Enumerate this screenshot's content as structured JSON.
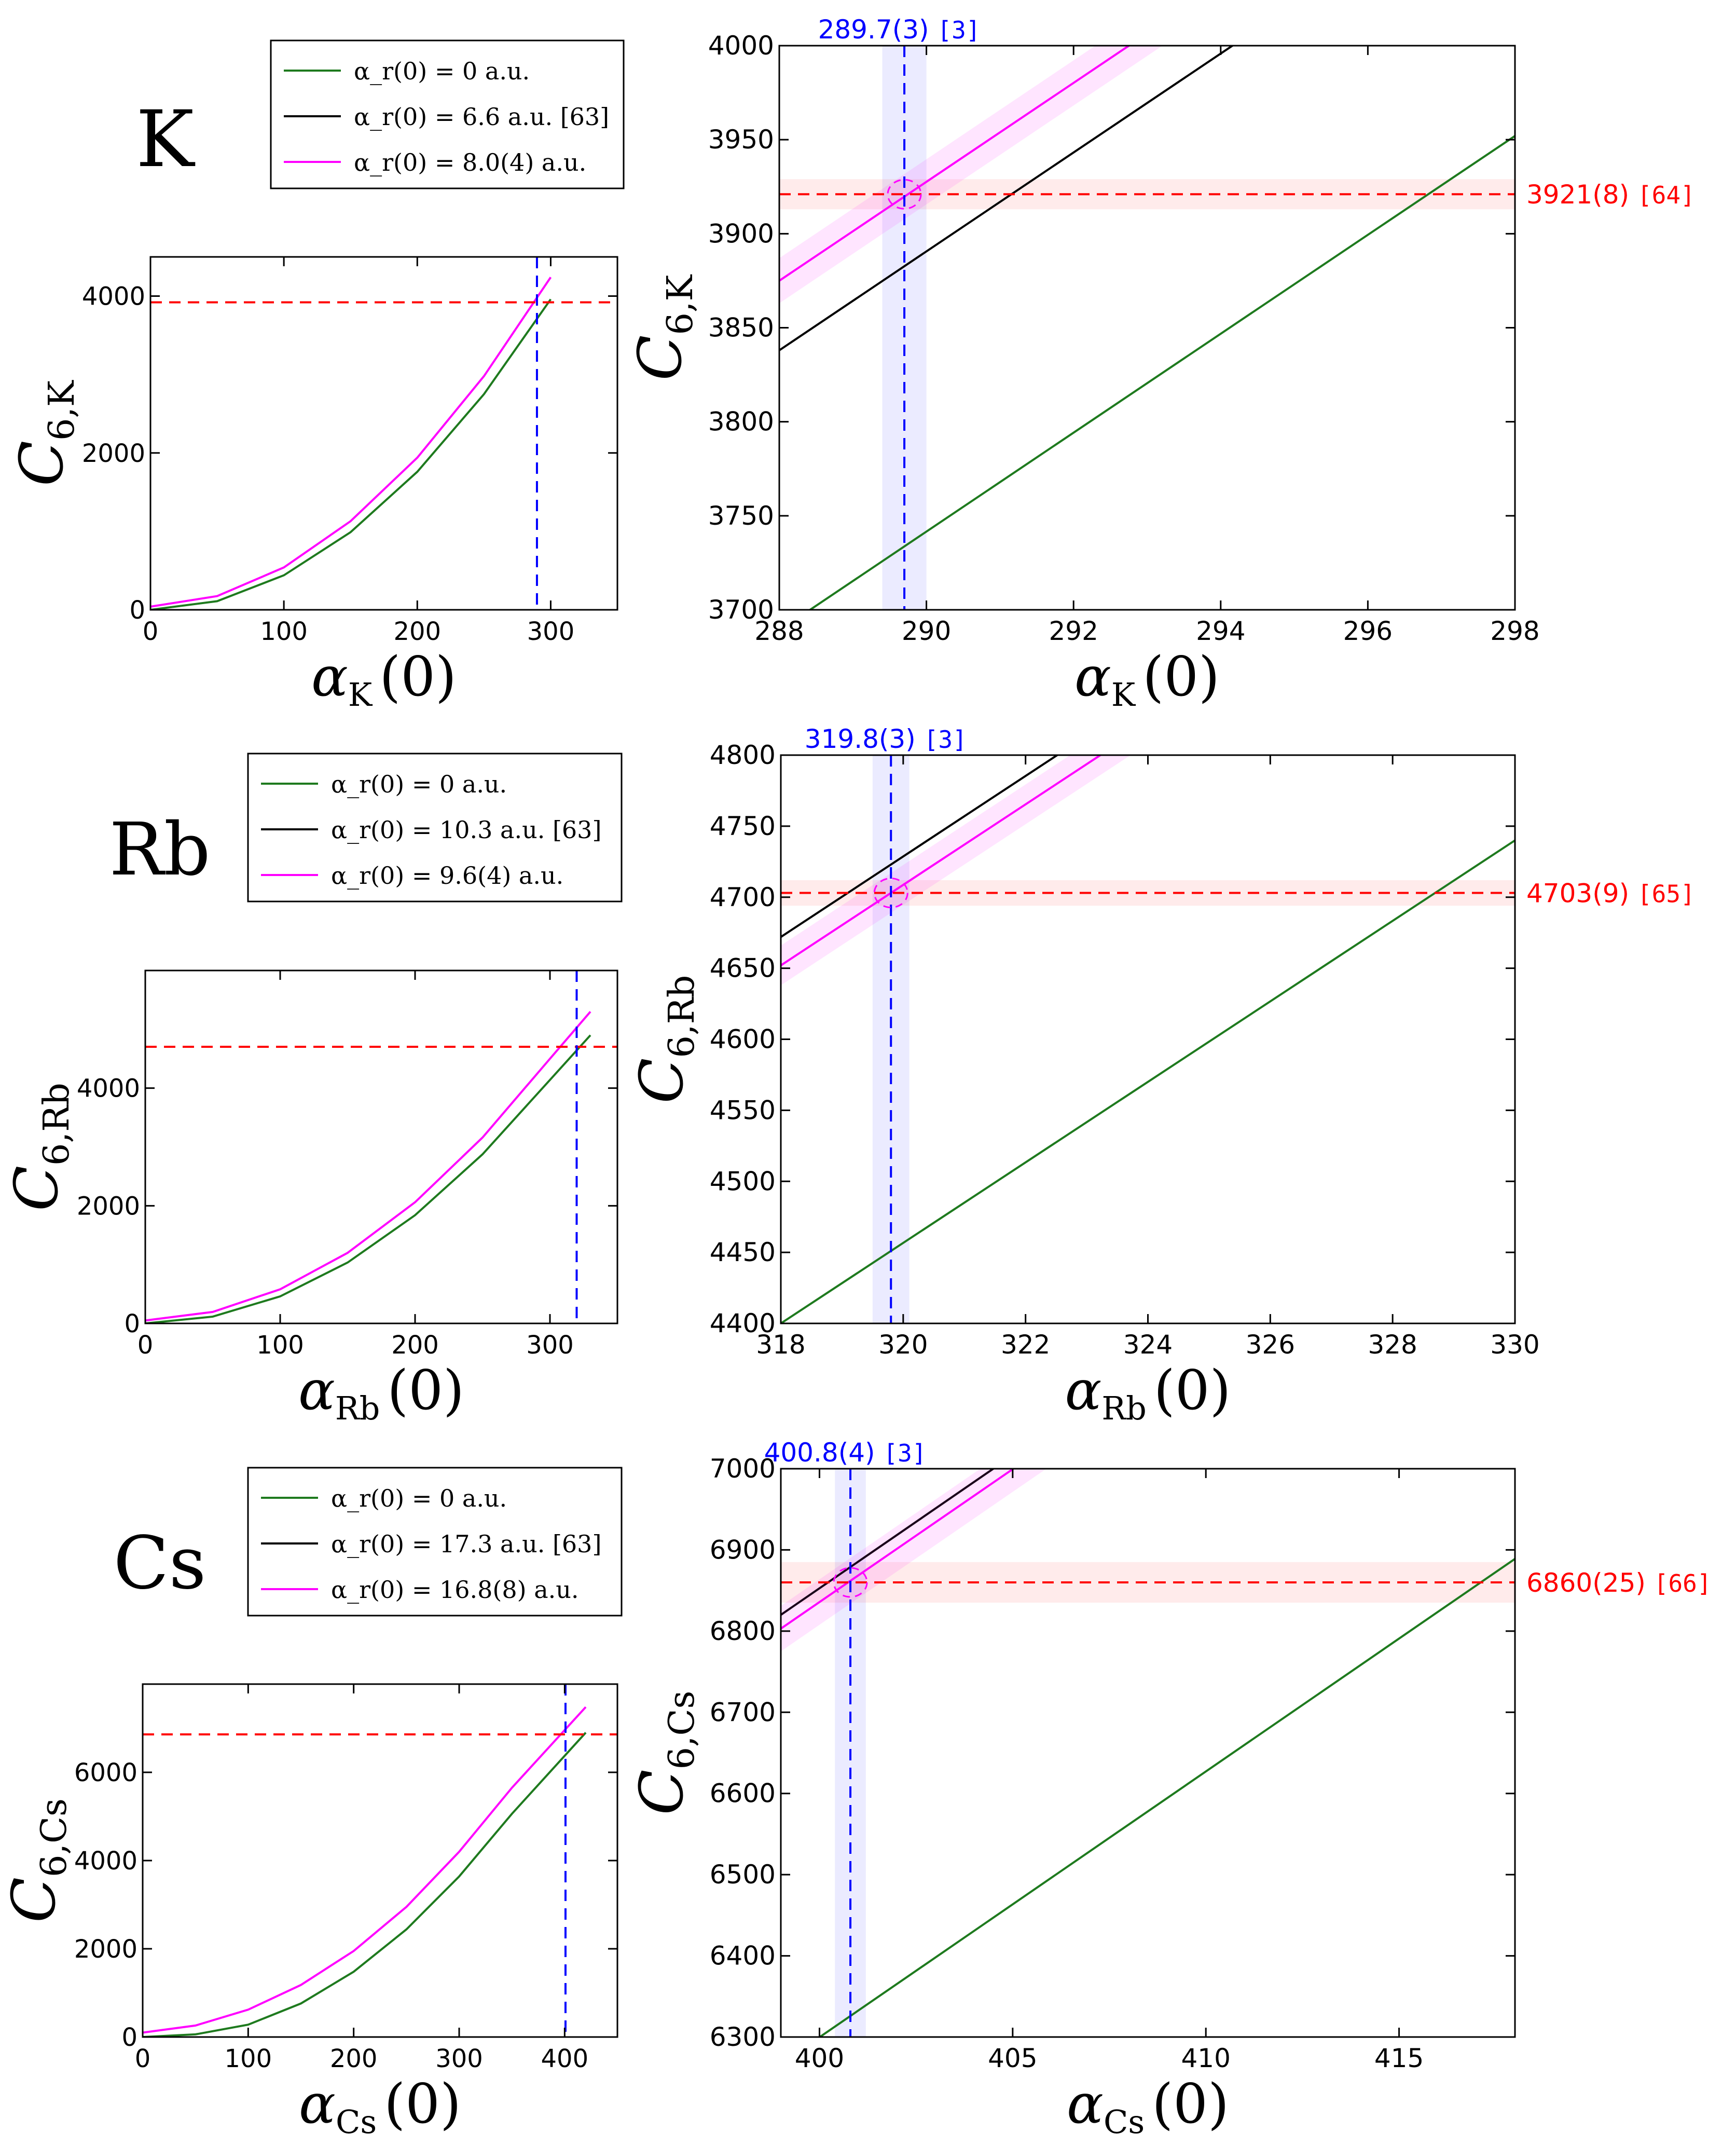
{
  "figure": {
    "description_rows": [
      "K",
      "Rb",
      "Cs"
    ]
  },
  "chart_data": [
    {
      "element": "K",
      "panel": "overview",
      "type": "line",
      "xlabel_sym": "α",
      "xlabel_sub": "K",
      "xlabel_arg": "(0)",
      "ylabel_sym": "C",
      "ylabel_sub": "6,K",
      "xlim": [
        0,
        350
      ],
      "ylim": [
        0,
        4500
      ],
      "xticks": [
        0,
        100,
        200,
        300
      ],
      "yticks": [
        0,
        2000,
        4000
      ],
      "series": [
        {
          "name": "alpha_r(0) = 0 a.u.",
          "color": "#1e7a1e",
          "x": [
            0,
            50,
            100,
            150,
            200,
            250,
            300
          ],
          "y": [
            0,
            110,
            440,
            990,
            1760,
            2750,
            3960
          ]
        },
        {
          "name": "alpha_r(0) = 8.0(4) a.u.",
          "color": "#ff00ff",
          "x": [
            0,
            50,
            100,
            150,
            200,
            250,
            300
          ],
          "y": [
            40,
            175,
            540,
            1130,
            1940,
            2980,
            4240
          ]
        }
      ],
      "hline": {
        "y": 3921,
        "color": "#ff0000"
      },
      "vline": {
        "x": 289.7,
        "color": "#0000ff"
      },
      "legend": {
        "entries": [
          {
            "text": "α_r(0) = 0 a.u.",
            "color": "#1e7a1e"
          },
          {
            "text": "α_r(0) = 6.6 a.u. [63]",
            "color": "#000000"
          },
          {
            "text": "α_r(0) = 8.0(4) a.u.",
            "color": "#ff00ff"
          }
        ]
      }
    },
    {
      "element": "K",
      "panel": "zoom",
      "type": "line",
      "xlabel_sym": "α",
      "xlabel_sub": "K",
      "xlabel_arg": "(0)",
      "ylabel_sym": "C",
      "ylabel_sub": "6,K",
      "xlim": [
        288,
        298
      ],
      "ylim": [
        3700,
        4000
      ],
      "xticks": [
        288,
        290,
        292,
        294,
        296,
        298
      ],
      "yticks": [
        3700,
        3750,
        3800,
        3850,
        3900,
        3950,
        4000
      ],
      "series": [
        {
          "name": "alpha_r(0) = 0 a.u.",
          "color": "#1e7a1e",
          "x": [
            288,
            298
          ],
          "y": [
            3689,
            3952
          ]
        },
        {
          "name": "alpha_r(0) = 6.6 a.u. [63]",
          "color": "#000000",
          "x": [
            288,
            298
          ],
          "y": [
            3838,
            4101
          ]
        },
        {
          "name": "alpha_r(0) = 8.0(4) a.u.",
          "color": "#ff00ff",
          "x": [
            288,
            298
          ],
          "y": [
            3875,
            4138
          ],
          "band": 12
        }
      ],
      "hline": {
        "y": 3921,
        "err": 8,
        "color": "#ff0000",
        "label_value": "3921(8)",
        "label_ref": "[64]"
      },
      "vline": {
        "x": 289.7,
        "err": 0.3,
        "color": "#0000ff",
        "label_value": "289.7(3)",
        "label_ref": "[3]"
      }
    },
    {
      "element": "Rb",
      "panel": "overview",
      "type": "line",
      "xlabel_sym": "α",
      "xlabel_sub": "Rb",
      "xlabel_arg": "(0)",
      "ylabel_sym": "C",
      "ylabel_sub": "6,Rb",
      "xlim": [
        0,
        350
      ],
      "ylim": [
        0,
        6000
      ],
      "xticks": [
        0,
        100,
        200,
        300
      ],
      "yticks": [
        0,
        2000,
        4000
      ],
      "series": [
        {
          "name": "alpha_r(0) = 0 a.u.",
          "color": "#1e7a1e",
          "x": [
            0,
            50,
            100,
            150,
            200,
            250,
            300,
            330
          ],
          "y": [
            0,
            115,
            460,
            1035,
            1840,
            2875,
            4140,
            4900
          ]
        },
        {
          "name": "alpha_r(0) = 9.6(4) a.u.",
          "color": "#ff00ff",
          "x": [
            0,
            50,
            100,
            150,
            200,
            250,
            300,
            330
          ],
          "y": [
            50,
            195,
            580,
            1200,
            2060,
            3160,
            4500,
            5300
          ]
        }
      ],
      "hline": {
        "y": 4703,
        "color": "#ff0000"
      },
      "vline": {
        "x": 319.8,
        "color": "#0000ff"
      },
      "legend": {
        "entries": [
          {
            "text": "α_r(0) = 0 a.u.",
            "color": "#1e7a1e"
          },
          {
            "text": "α_r(0) = 10.3 a.u. [63]",
            "color": "#000000"
          },
          {
            "text": "α_r(0) = 9.6(4) a.u.",
            "color": "#ff00ff"
          }
        ]
      }
    },
    {
      "element": "Rb",
      "panel": "zoom",
      "type": "line",
      "xlabel_sym": "α",
      "xlabel_sub": "Rb",
      "xlabel_arg": "(0)",
      "ylabel_sym": "C",
      "ylabel_sub": "6,Rb",
      "xlim": [
        318,
        330
      ],
      "ylim": [
        4400,
        4800
      ],
      "xticks": [
        318,
        320,
        322,
        324,
        326,
        328,
        330
      ],
      "yticks": [
        4400,
        4450,
        4500,
        4550,
        4600,
        4650,
        4700,
        4750,
        4800
      ],
      "series": [
        {
          "name": "alpha_r(0) = 0 a.u.",
          "color": "#1e7a1e",
          "x": [
            318,
            330
          ],
          "y": [
            4400,
            4740
          ]
        },
        {
          "name": "alpha_r(0) = 10.3 a.u. [63]",
          "color": "#000000",
          "x": [
            318,
            330
          ],
          "y": [
            4672,
            5012
          ]
        },
        {
          "name": "alpha_r(0) = 9.6(4) a.u.",
          "color": "#ff00ff",
          "x": [
            318,
            330
          ],
          "y": [
            4652,
            4992
          ],
          "band": 14
        }
      ],
      "hline": {
        "y": 4703,
        "err": 9,
        "color": "#ff0000",
        "label_value": "4703(9)",
        "label_ref": "[65]"
      },
      "vline": {
        "x": 319.8,
        "err": 0.3,
        "color": "#0000ff",
        "label_value": "319.8(3)",
        "label_ref": "[3]"
      }
    },
    {
      "element": "Cs",
      "panel": "overview",
      "type": "line",
      "xlabel_sym": "α",
      "xlabel_sub": "Cs",
      "xlabel_arg": "(0)",
      "ylabel_sym": "C",
      "ylabel_sub": "6,Cs",
      "xlim": [
        0,
        450
      ],
      "ylim": [
        0,
        8000
      ],
      "xticks": [
        0,
        100,
        200,
        300,
        400
      ],
      "yticks": [
        0,
        2000,
        4000,
        6000
      ],
      "series": [
        {
          "name": "alpha_r(0) = 0 a.u.",
          "color": "#1e7a1e",
          "x": [
            0,
            50,
            100,
            150,
            200,
            250,
            300,
            350,
            420
          ],
          "y": [
            0,
            60,
            280,
            760,
            1480,
            2440,
            3640,
            5060,
            6900
          ]
        },
        {
          "name": "alpha_r(0) = 16.8(8) a.u.",
          "color": "#ff00ff",
          "x": [
            0,
            50,
            100,
            150,
            200,
            250,
            300,
            350,
            420
          ],
          "y": [
            100,
            260,
            620,
            1180,
            1950,
            2950,
            4200,
            5650,
            7480
          ]
        }
      ],
      "hline": {
        "y": 6860,
        "color": "#ff0000"
      },
      "vline": {
        "x": 400.8,
        "color": "#0000ff"
      },
      "legend": {
        "entries": [
          {
            "text": "α_r(0) = 0 a.u.",
            "color": "#1e7a1e"
          },
          {
            "text": "α_r(0) = 17.3 a.u. [63]",
            "color": "#000000"
          },
          {
            "text": "α_r(0) = 16.8(8) a.u.",
            "color": "#ff00ff"
          }
        ]
      }
    },
    {
      "element": "Cs",
      "panel": "zoom",
      "type": "line",
      "xlabel_sym": "α",
      "xlabel_sub": "Cs",
      "xlabel_arg": "(0)",
      "ylabel_sym": "C",
      "ylabel_sub": "6,Cs",
      "xlim": [
        399,
        418
      ],
      "ylim": [
        6300,
        7000
      ],
      "xticks": [
        400,
        405,
        410,
        415
      ],
      "yticks": [
        6300,
        6400,
        6500,
        6600,
        6700,
        6800,
        6900,
        7000
      ],
      "series": [
        {
          "name": "alpha_r(0) = 0 a.u.",
          "color": "#1e7a1e",
          "x": [
            399,
            418
          ],
          "y": [
            6267,
            6889
          ]
        },
        {
          "name": "alpha_r(0) = 17.3 a.u. [63]",
          "color": "#000000",
          "x": [
            399,
            418
          ],
          "y": [
            6820,
            7442
          ]
        },
        {
          "name": "alpha_r(0) = 16.8(8) a.u.",
          "color": "#ff00ff",
          "x": [
            399,
            418
          ],
          "y": [
            6803,
            7425
          ],
          "band": 28
        }
      ],
      "hline": {
        "y": 6860,
        "err": 25,
        "color": "#ff0000",
        "label_value": "6860(25)",
        "label_ref": "[66]"
      },
      "vline": {
        "x": 400.8,
        "err": 0.4,
        "color": "#0000ff",
        "label_value": "400.8(4)",
        "label_ref": "[3]"
      }
    }
  ]
}
